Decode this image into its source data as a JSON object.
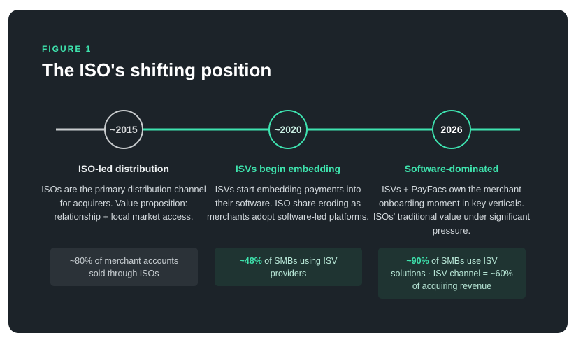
{
  "figure_label": "FIGURE 1",
  "title": "The ISO's shifting position",
  "stages": [
    {
      "year": "~2015",
      "heading": "ISO-led distribution",
      "description": "ISOs are the primary distribution channel for acquirers. Value proposition: relationship + local market access.",
      "stat": {
        "text": "~80% of merchant accounts sold through ISOs"
      }
    },
    {
      "year": "~2020",
      "heading": "ISVs begin embedding",
      "description": "ISVs start embedding payments into their software. ISO share eroding as merchants adopt software-led platforms.",
      "stat": {
        "highlight": "~48%",
        "text": "of SMBs using ISV providers"
      }
    },
    {
      "year": "2026",
      "heading": "Software-dominated",
      "description": "ISVs + PayFacs own the merchant onboarding moment in key verticals. ISOs' traditional value under significant pressure.",
      "stat": {
        "highlight": "~90%",
        "text": "of SMBs use ISV solutions · ISV channel = ~60% of acquiring revenue"
      }
    }
  ]
}
